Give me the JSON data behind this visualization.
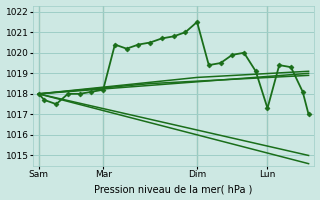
{
  "background_color": "#cde8e3",
  "grid_color": "#9ecec7",
  "line_color": "#1a6e1a",
  "xlabel": "Pression niveau de la mer( hPa )",
  "ylim": [
    1014.5,
    1022.3
  ],
  "yticks": [
    1015,
    1016,
    1017,
    1018,
    1019,
    1020,
    1021,
    1022
  ],
  "day_labels": [
    "Sam",
    "Mar",
    "Dim",
    "Lun"
  ],
  "day_positions": [
    0.5,
    6,
    14,
    20
  ],
  "series": [
    {
      "x": [
        0.5,
        1,
        2,
        3,
        4,
        5,
        6,
        7,
        8,
        9,
        10,
        11,
        12,
        13,
        14,
        15,
        16,
        17,
        18,
        19,
        20,
        21,
        22,
        23,
        23.5
      ],
      "y": [
        1018.0,
        1017.7,
        1017.5,
        1018.0,
        1018.0,
        1018.1,
        1018.2,
        1020.4,
        1020.2,
        1020.4,
        1020.5,
        1020.7,
        1020.8,
        1021.0,
        1021.5,
        1019.4,
        1019.5,
        1019.9,
        1020.0,
        1019.1,
        1017.3,
        1019.4,
        1019.3,
        1018.1,
        1017.0
      ],
      "marker": "D",
      "markersize": 2.5,
      "linewidth": 1.3,
      "linestyle": "-"
    },
    {
      "x": [
        0.5,
        23.5
      ],
      "y": [
        1018.0,
        1019.0
      ],
      "marker": null,
      "linewidth": 1.1,
      "linestyle": "-"
    },
    {
      "x": [
        0.5,
        14,
        23.5
      ],
      "y": [
        1018.0,
        1018.8,
        1019.1
      ],
      "marker": null,
      "linewidth": 1.1,
      "linestyle": "-"
    },
    {
      "x": [
        0.5,
        10,
        23.5
      ],
      "y": [
        1018.0,
        1018.5,
        1018.9
      ],
      "marker": null,
      "linewidth": 1.1,
      "linestyle": "-"
    },
    {
      "x": [
        0.5,
        23.5
      ],
      "y": [
        1018.0,
        1015.0
      ],
      "marker": null,
      "linewidth": 1.1,
      "linestyle": "-"
    },
    {
      "x": [
        0.5,
        23.5
      ],
      "y": [
        1018.0,
        1014.6
      ],
      "marker": null,
      "linewidth": 1.1,
      "linestyle": "-"
    }
  ]
}
